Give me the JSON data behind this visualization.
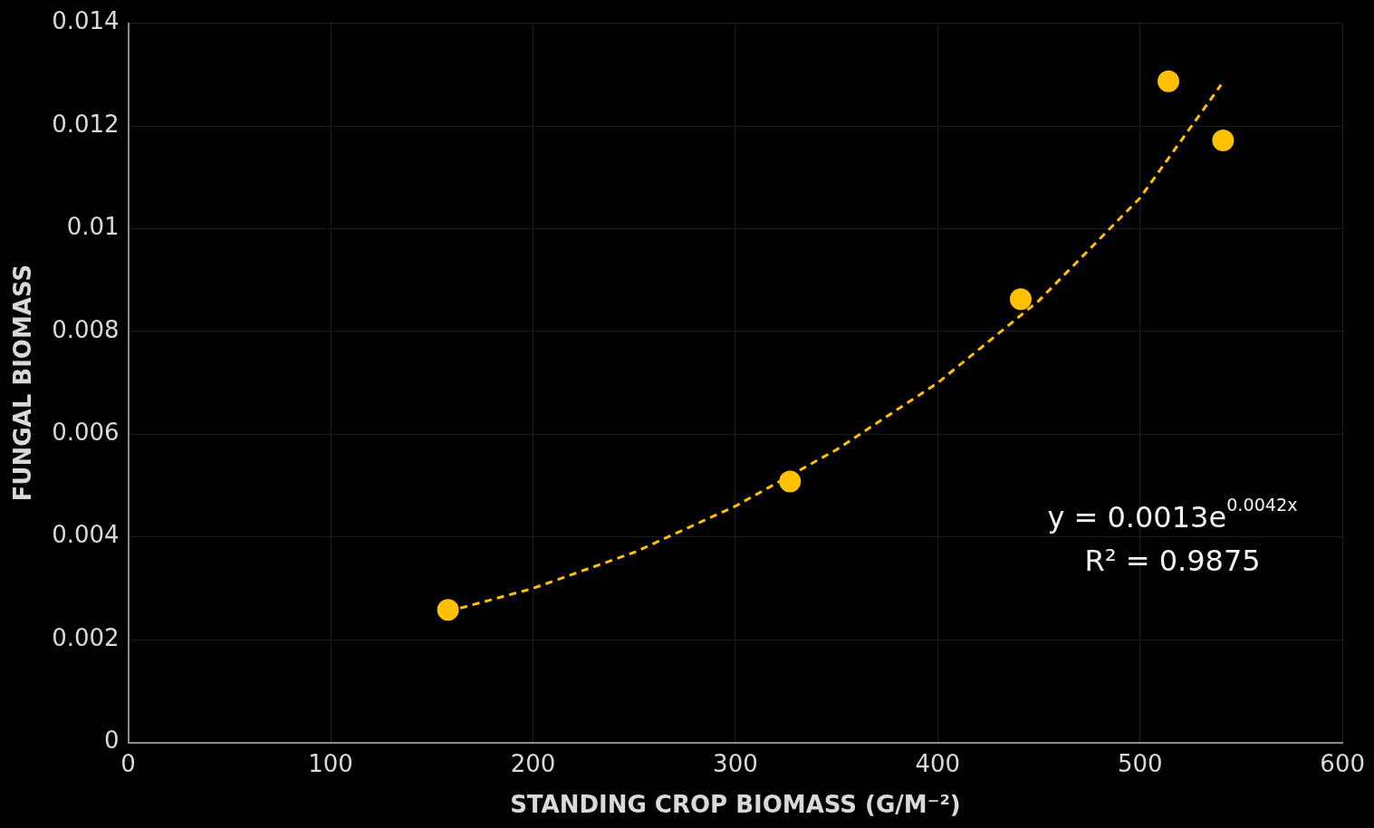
{
  "chart_data": {
    "type": "scatter",
    "xlabel": "STANDING CROP BIOMASS (G/M⁻²)",
    "ylabel": "FUNGAL BIOMASS",
    "xlim": [
      0,
      600
    ],
    "xticks": [
      0,
      100,
      200,
      300,
      400,
      500,
      600
    ],
    "ylim": [
      0,
      0.014
    ],
    "yticks": [
      0,
      0.002,
      0.004,
      0.006,
      0.008,
      0.01,
      0.012,
      0.014
    ],
    "grid": true,
    "marker": "circle",
    "series": [
      {
        "color": "#ffc000",
        "x": [
          158,
          327,
          441,
          514,
          541
        ],
        "values": [
          0.00258,
          0.00508,
          0.00863,
          0.01287,
          0.01172
        ]
      },
      {
        "type": "line",
        "line_style": "dashed",
        "marker": "none",
        "color": "#ffc000",
        "x": [
          158,
          200,
          250,
          300,
          350,
          400,
          450,
          500,
          540
        ],
        "values": [
          0.00255,
          0.003,
          0.0037,
          0.0046,
          0.0057,
          0.007,
          0.0086,
          0.0106,
          0.0128
        ]
      }
    ],
    "annotations": [
      "y = 0.0013e$^{0.0042x}$",
      "R² = 0.9875"
    ]
  }
}
